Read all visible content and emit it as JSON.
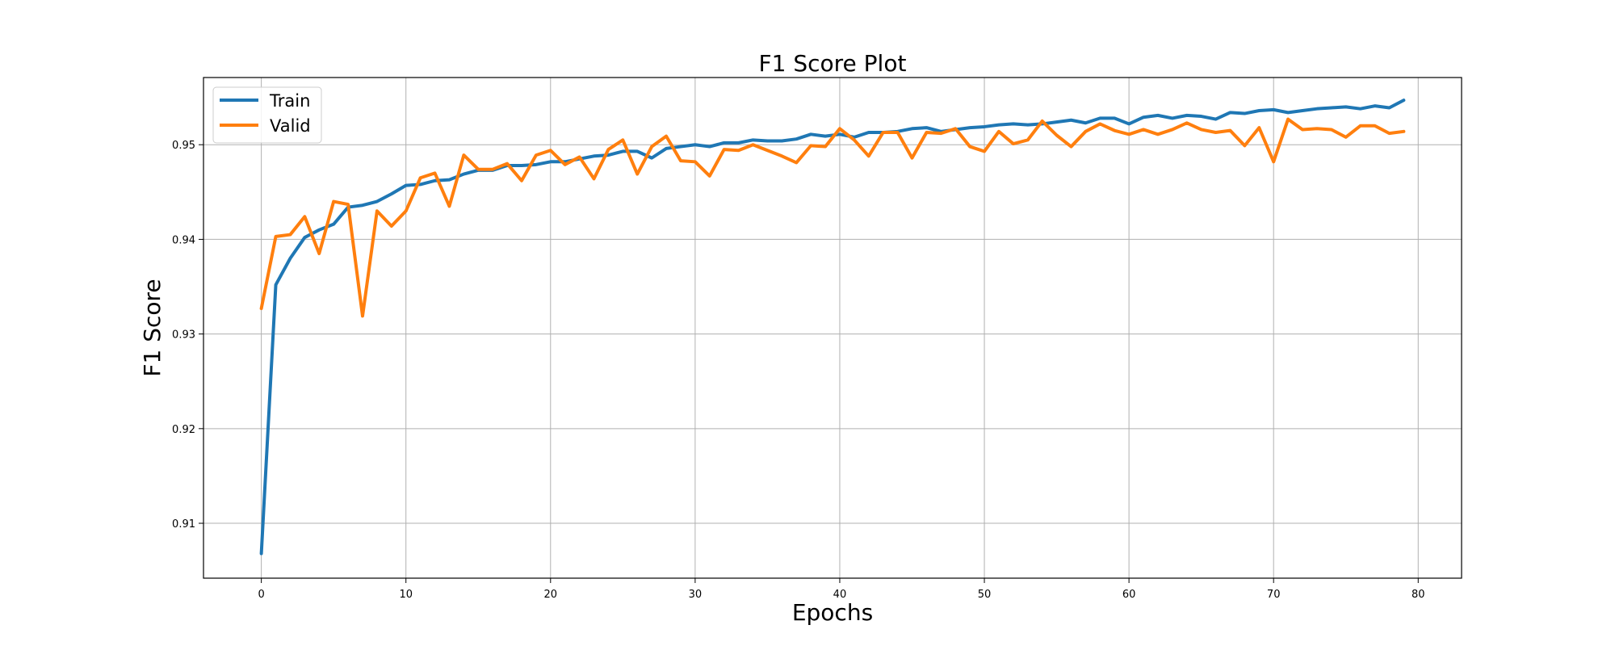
{
  "chart_data": {
    "type": "line",
    "title": "F1 Score Plot",
    "xlabel": "Epochs",
    "ylabel": "F1 Score",
    "xlim": [
      -4,
      83
    ],
    "ylim": [
      0.9042,
      0.9571
    ],
    "xticks": [
      0,
      10,
      20,
      30,
      40,
      50,
      60,
      70,
      80
    ],
    "yticks": [
      0.91,
      0.92,
      0.93,
      0.94,
      0.95
    ],
    "ytick_labels": [
      "0.91",
      "0.92",
      "0.93",
      "0.94",
      "0.95"
    ],
    "grid": true,
    "legend_position": "upper-left",
    "x": [
      0,
      1,
      2,
      3,
      4,
      5,
      6,
      7,
      8,
      9,
      10,
      11,
      12,
      13,
      14,
      15,
      16,
      17,
      18,
      19,
      20,
      21,
      22,
      23,
      24,
      25,
      26,
      27,
      28,
      29,
      30,
      31,
      32,
      33,
      34,
      35,
      36,
      37,
      38,
      39,
      40,
      41,
      42,
      43,
      44,
      45,
      46,
      47,
      48,
      49,
      50,
      51,
      52,
      53,
      54,
      55,
      56,
      57,
      58,
      59,
      60,
      61,
      62,
      63,
      64,
      65,
      66,
      67,
      68,
      69,
      70,
      71,
      72,
      73,
      74,
      75,
      76,
      77,
      78,
      79
    ],
    "series": [
      {
        "name": "Train",
        "color": "#1f77b4",
        "values": [
          0.9068,
          0.9352,
          0.938,
          0.9402,
          0.941,
          0.9416,
          0.9434,
          0.9436,
          0.944,
          0.9448,
          0.9457,
          0.9458,
          0.9462,
          0.9463,
          0.9469,
          0.9473,
          0.9473,
          0.9478,
          0.9478,
          0.9479,
          0.9482,
          0.9482,
          0.9485,
          0.9488,
          0.9489,
          0.9493,
          0.9493,
          0.9486,
          0.9496,
          0.9498,
          0.95,
          0.9498,
          0.9502,
          0.9502,
          0.9505,
          0.9504,
          0.9504,
          0.9506,
          0.9511,
          0.9509,
          0.9511,
          0.9508,
          0.9513,
          0.9513,
          0.9514,
          0.9517,
          0.9518,
          0.9514,
          0.9516,
          0.9518,
          0.9519,
          0.9521,
          0.9522,
          0.9521,
          0.9522,
          0.9524,
          0.9526,
          0.9523,
          0.9528,
          0.9528,
          0.9522,
          0.9529,
          0.9531,
          0.9528,
          0.9531,
          0.953,
          0.9527,
          0.9534,
          0.9533,
          0.9536,
          0.9537,
          0.9534,
          0.9536,
          0.9538,
          0.9539,
          0.954,
          0.9538,
          0.9541,
          0.9539,
          0.9547
        ]
      },
      {
        "name": "Valid",
        "color": "#ff7f0e",
        "values": [
          0.9327,
          0.9403,
          0.9405,
          0.9424,
          0.9385,
          0.944,
          0.9437,
          0.9319,
          0.943,
          0.9414,
          0.943,
          0.9465,
          0.947,
          0.9435,
          0.9489,
          0.9474,
          0.9474,
          0.948,
          0.9462,
          0.9489,
          0.9494,
          0.9479,
          0.9487,
          0.9464,
          0.9495,
          0.9505,
          0.9469,
          0.9498,
          0.9509,
          0.9483,
          0.9482,
          0.9467,
          0.9495,
          0.9494,
          0.95,
          0.9494,
          0.9488,
          0.9481,
          0.9499,
          0.9498,
          0.9517,
          0.9505,
          0.9488,
          0.9513,
          0.9513,
          0.9486,
          0.9513,
          0.9512,
          0.9517,
          0.9498,
          0.9493,
          0.9514,
          0.9501,
          0.9505,
          0.9525,
          0.951,
          0.9498,
          0.9514,
          0.9522,
          0.9515,
          0.9511,
          0.9516,
          0.9511,
          0.9516,
          0.9523,
          0.9516,
          0.9513,
          0.9515,
          0.9499,
          0.9518,
          0.9482,
          0.9527,
          0.9516,
          0.9517,
          0.9516,
          0.9508,
          0.952,
          0.952,
          0.9512,
          0.9514
        ]
      }
    ]
  }
}
